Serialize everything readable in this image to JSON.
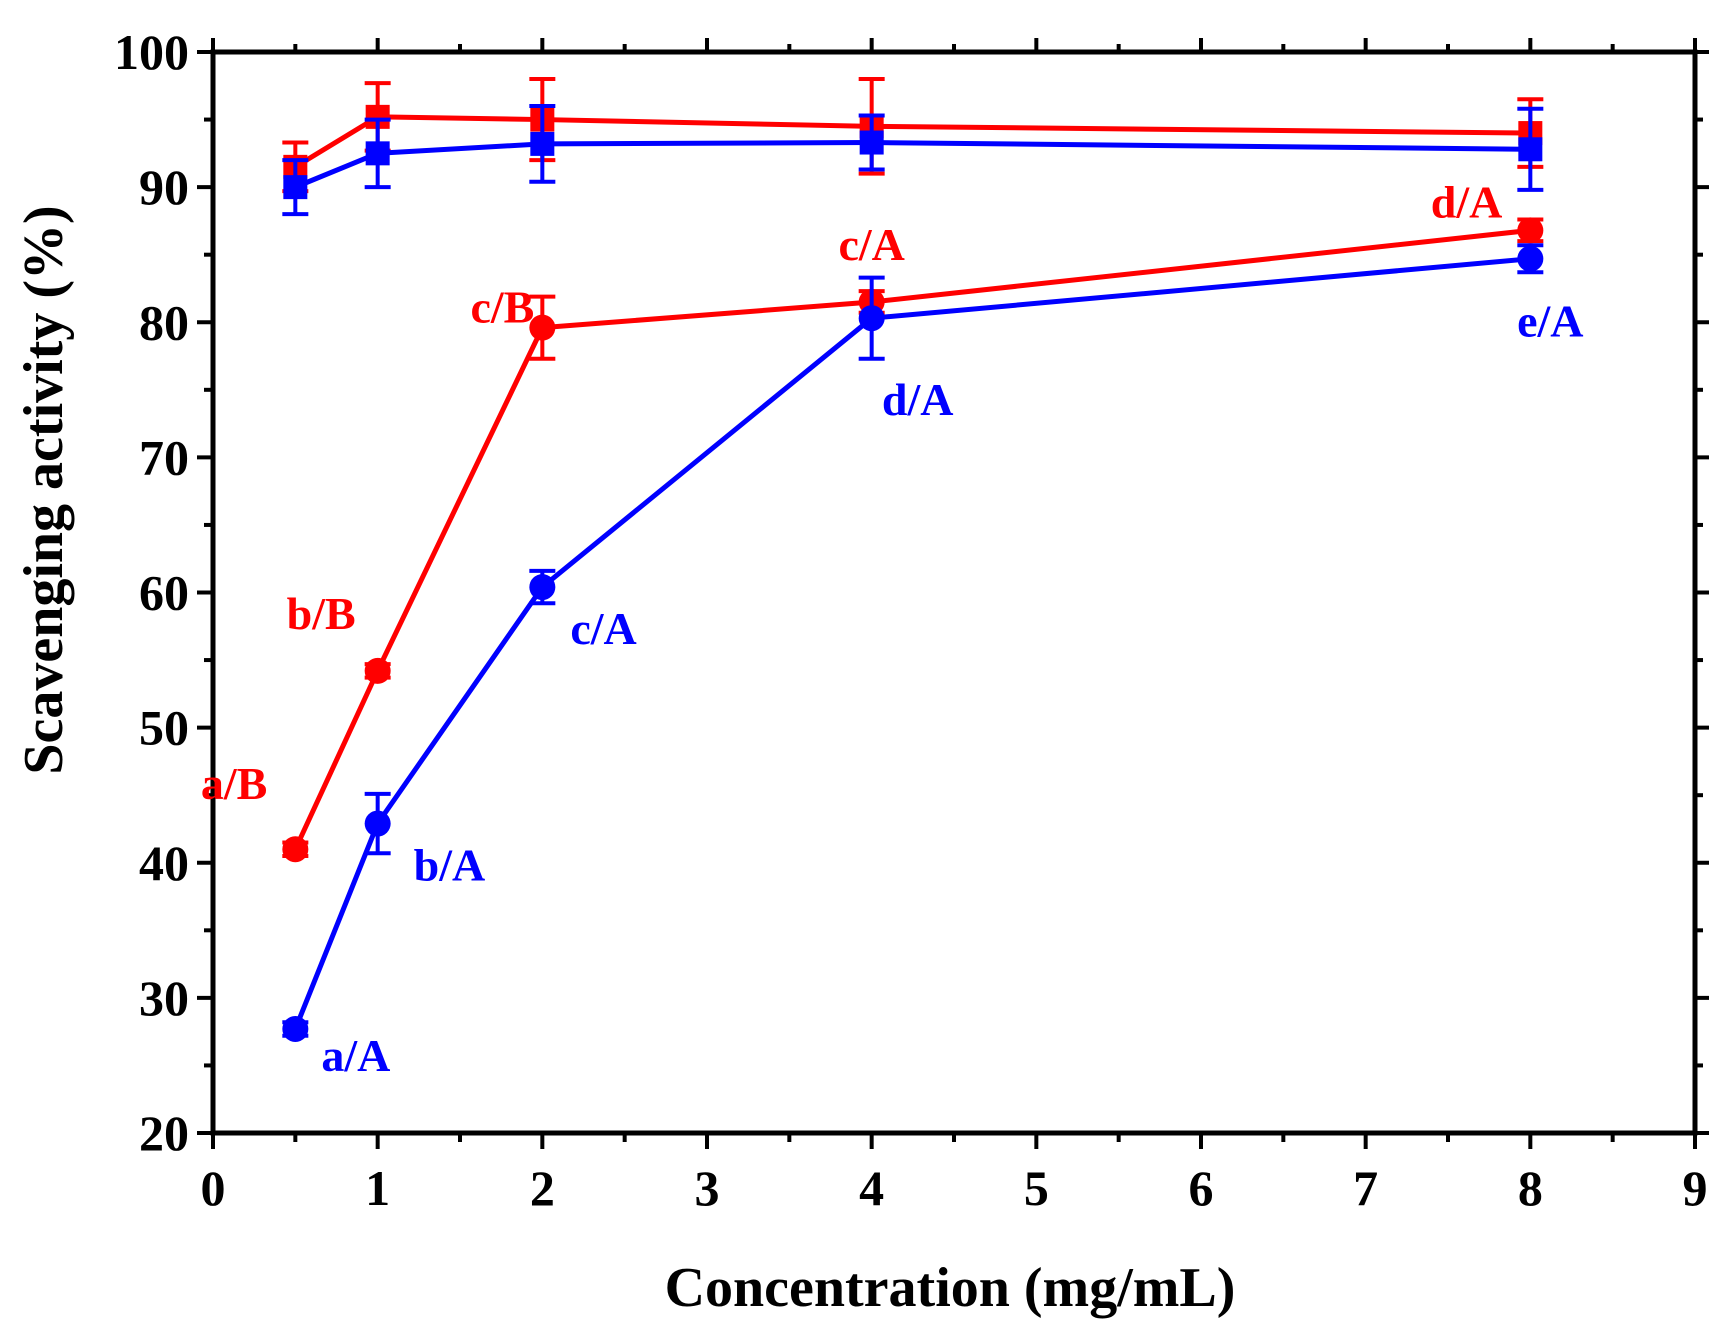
{
  "chart_data": {
    "type": "line",
    "xlabel": "Concentration (mg/mL)",
    "ylabel": "Scavenging activity (%)",
    "xlim": [
      0,
      9
    ],
    "ylim": [
      20,
      100
    ],
    "x_ticks": [
      "0",
      "1",
      "2",
      "3",
      "4",
      "5",
      "6",
      "7",
      "8",
      "9"
    ],
    "y_ticks": [
      "20",
      "30",
      "40",
      "50",
      "60",
      "70",
      "80",
      "90",
      "100"
    ],
    "grid": false,
    "legend": "none",
    "x": [
      0.5,
      1,
      2,
      4,
      8
    ],
    "series": [
      {
        "marker": "square",
        "color": "#ff0000",
        "values": [
          91.5,
          95.2,
          95.0,
          94.5,
          94.0
        ],
        "error": [
          1.8,
          2.5,
          3.0,
          3.5,
          2.5
        ],
        "labels": []
      },
      {
        "marker": "square",
        "color": "#0000ff",
        "values": [
          90.0,
          92.5,
          93.2,
          93.3,
          92.8
        ],
        "error": [
          2.0,
          2.5,
          2.8,
          2.0,
          3.0
        ],
        "labels": []
      },
      {
        "marker": "circle",
        "color": "#ff0000",
        "values": [
          41.0,
          54.2,
          79.6,
          81.5,
          86.8
        ],
        "error": [
          0.5,
          0.5,
          2.3,
          0.8,
          0.8
        ],
        "labels": [
          "a/B",
          "b/B",
          "c/B",
          "c/A",
          "d/A"
        ]
      },
      {
        "marker": "circle",
        "color": "#0000ff",
        "values": [
          27.7,
          42.9,
          60.4,
          80.3,
          84.7
        ],
        "error": [
          0.5,
          2.2,
          1.2,
          3.0,
          1.0
        ],
        "labels": [
          "a/A",
          "b/A",
          "c/A",
          "d/A",
          "e/A"
        ]
      }
    ]
  }
}
